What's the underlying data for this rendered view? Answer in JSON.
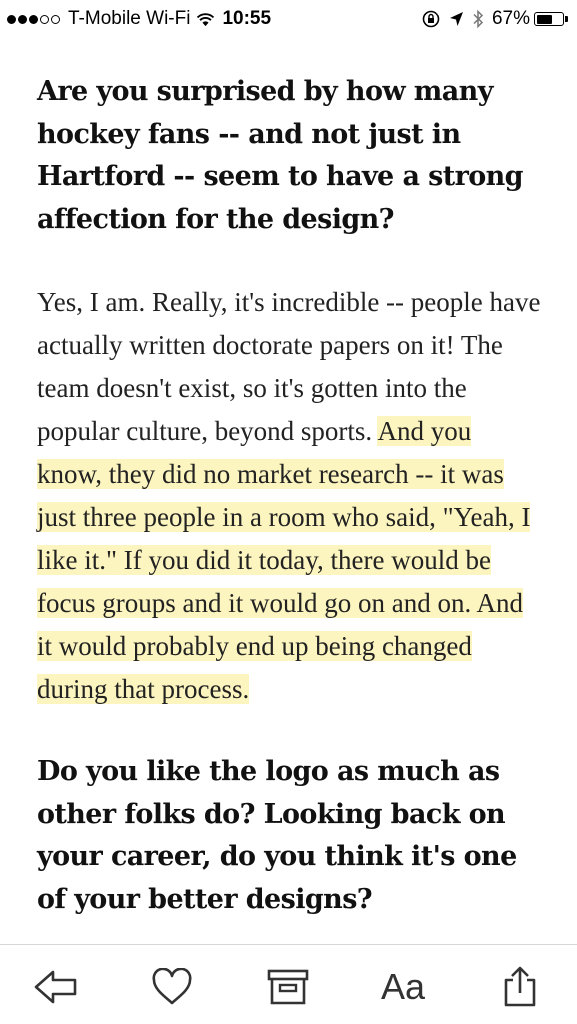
{
  "status_bar": {
    "carrier": "T-Mobile Wi-Fi",
    "time": "10:55",
    "battery_percent": "67%",
    "battery_level": 0.67,
    "signal_bars_filled": 3,
    "signal_bars_total": 5,
    "icons": [
      "wifi-icon",
      "rotation-lock-icon",
      "location-arrow-icon",
      "bluetooth-icon",
      "battery-icon"
    ]
  },
  "article": {
    "question_1": "Are you surprised by how many hockey fans -- and not just in Hartford -- seem to have a strong affection for the design?",
    "answer_1_plain": "Yes, I am. Really, it's incredible -- people have actually written doctorate papers on it! The team doesn't exist, so it's gotten into the popular culture, beyond sports. ",
    "answer_1_highlighted": "And you know, they did no market research -- it was just three people in a room who said, \"Yeah, I like it.\" If you did it today, there would be focus groups and it would go on and on. And it would probably end up being changed during that process.",
    "question_2": "Do you like the logo as much as other folks do? Looking back on your career, do you think it's one of your better designs?"
  },
  "colors": {
    "highlight": "#fdf5c0",
    "text": "#222222",
    "toolbar_icon": "#333333"
  },
  "toolbar": {
    "font_label": "Aa",
    "icons": [
      "back-arrow-icon",
      "heart-icon",
      "archive-icon",
      "font-size-icon",
      "share-icon"
    ]
  }
}
